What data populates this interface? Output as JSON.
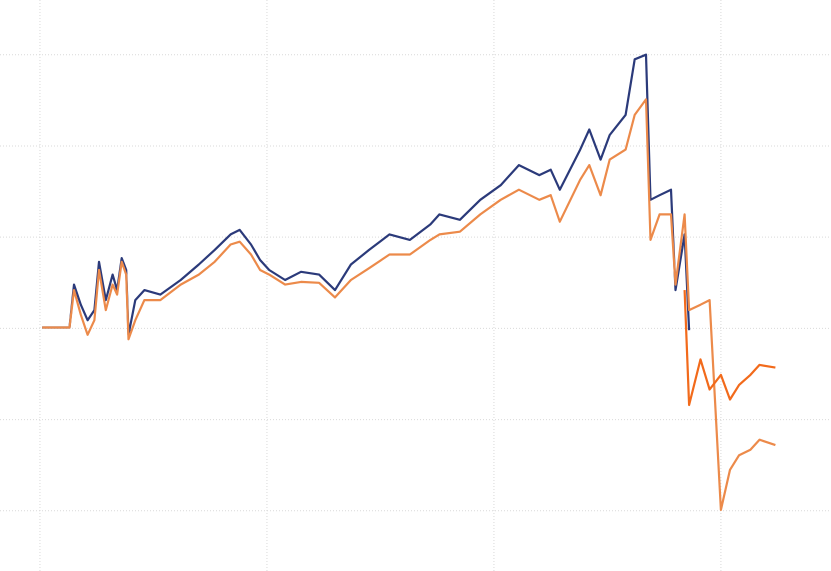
{
  "chart_data": {
    "type": "line",
    "x": [
      0.01,
      0.13,
      0.15,
      0.18,
      0.21,
      0.24,
      0.26,
      0.29,
      0.32,
      0.34,
      0.36,
      0.38,
      0.39,
      0.42,
      0.46,
      0.53,
      0.62,
      0.7,
      0.77,
      0.84,
      0.88,
      0.93,
      0.97,
      1.01,
      1.08,
      1.15,
      1.23,
      1.3,
      1.37,
      1.45,
      1.54,
      1.63,
      1.72,
      1.76,
      1.85,
      1.94,
      2.03,
      2.11,
      2.2,
      2.25,
      2.29,
      2.38,
      2.42,
      2.47,
      2.51,
      2.58,
      2.62,
      2.67,
      2.69,
      2.73,
      2.78,
      2.8,
      2.84,
      2.86,
      2.91,
      2.95,
      3.0,
      3.04,
      3.08,
      3.13,
      3.17,
      3.24
    ],
    "series": [
      {
        "color": "#2b3a7a",
        "values": [
          2.01,
          2.01,
          2.48,
          2.26,
          2.09,
          2.2,
          2.73,
          2.31,
          2.59,
          2.42,
          2.77,
          2.64,
          1.93,
          2.31,
          2.42,
          2.37,
          2.53,
          2.7,
          2.86,
          3.03,
          3.08,
          2.92,
          2.75,
          2.64,
          2.53,
          2.62,
          2.59,
          2.42,
          2.7,
          2.86,
          3.03,
          2.97,
          3.14,
          3.25,
          3.19,
          3.41,
          3.57,
          3.79,
          3.68,
          3.74,
          3.52,
          3.96,
          4.18,
          3.85,
          4.12,
          4.34,
          4.95,
          5.0,
          3.41,
          3.46,
          3.52,
          2.42,
          3.03,
          1.98,
          null,
          null,
          null,
          null,
          null,
          null,
          null,
          null
        ]
      },
      {
        "color": "#ec8a4a",
        "values": [
          2.01,
          2.01,
          2.42,
          2.15,
          1.93,
          2.09,
          2.64,
          2.2,
          2.48,
          2.37,
          2.73,
          2.59,
          1.88,
          2.09,
          2.31,
          2.31,
          2.48,
          2.59,
          2.73,
          2.92,
          2.95,
          2.81,
          2.64,
          2.59,
          2.48,
          2.51,
          2.5,
          2.34,
          2.53,
          2.66,
          2.81,
          2.81,
          2.97,
          3.03,
          3.06,
          3.25,
          3.41,
          3.52,
          3.41,
          3.46,
          3.17,
          3.63,
          3.79,
          3.46,
          3.85,
          3.96,
          4.34,
          4.51,
          2.97,
          3.25,
          3.25,
          2.48,
          3.25,
          2.2,
          2.26,
          2.31,
          0.01,
          0.45,
          0.61,
          0.67,
          0.78,
          0.72
        ]
      },
      {
        "color": "#f26a1b",
        "values": [
          null,
          null,
          null,
          null,
          null,
          null,
          null,
          null,
          null,
          null,
          null,
          null,
          null,
          null,
          null,
          null,
          null,
          null,
          null,
          null,
          null,
          null,
          null,
          null,
          null,
          null,
          null,
          null,
          null,
          null,
          null,
          null,
          null,
          null,
          null,
          null,
          null,
          null,
          null,
          null,
          null,
          null,
          null,
          null,
          null,
          null,
          null,
          null,
          null,
          null,
          null,
          null,
          2.42,
          1.16,
          1.66,
          1.33,
          1.49,
          1.22,
          1.38,
          1.49,
          1.6,
          1.57
        ]
      }
    ],
    "xlim": [
      -0.176,
      3.485
    ],
    "xticks": [
      0,
      1,
      2,
      3
    ],
    "ylim": [
      -0.66,
      5.6
    ],
    "yticks": [
      0,
      1,
      2,
      3,
      4,
      5
    ],
    "grid": true
  }
}
